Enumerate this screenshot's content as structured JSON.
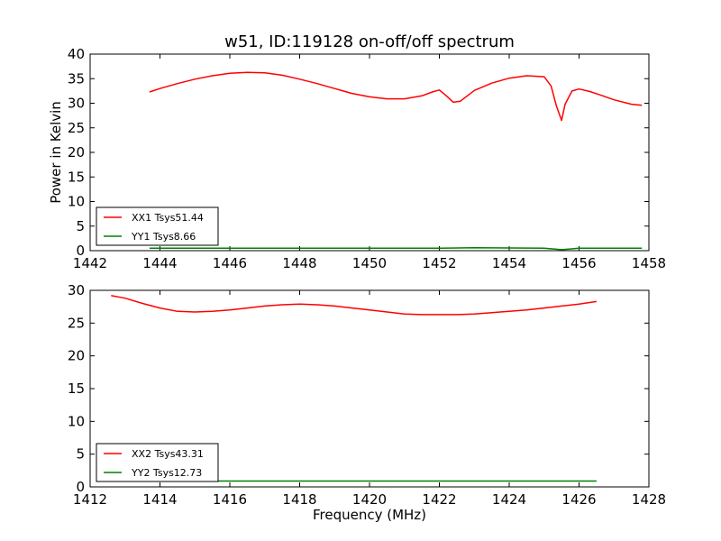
{
  "figure": {
    "title": "w51, ID:119128 on-off/off spectrum",
    "colors": {
      "xx": "#ff0000",
      "yy": "#008000",
      "axes": "#000000",
      "background": "#ffffff"
    }
  },
  "chart_data": [
    {
      "type": "line",
      "title": "w51, ID:119128 on-off/off spectrum",
      "xlabel": "",
      "ylabel": "Power in Kelvin",
      "xlim": [
        1442,
        1458
      ],
      "ylim": [
        0,
        40
      ],
      "xticks": [
        "1442",
        "1444",
        "1446",
        "1448",
        "1450",
        "1452",
        "1454",
        "1456",
        "1458"
      ],
      "yticks": [
        "0",
        "5",
        "10",
        "15",
        "20",
        "25",
        "30",
        "35",
        "40"
      ],
      "legend_position": "lower-left",
      "grid": false,
      "series": [
        {
          "name": "XX1 Tsys51.44",
          "color": "#ff0000",
          "x": [
            1443.7,
            1444.0,
            1444.5,
            1445.0,
            1445.5,
            1446.0,
            1446.5,
            1447.0,
            1447.5,
            1448.0,
            1448.5,
            1449.0,
            1449.5,
            1450.0,
            1450.5,
            1451.0,
            1451.5,
            1451.8,
            1452.0,
            1452.2,
            1452.4,
            1452.6,
            1453.0,
            1453.5,
            1454.0,
            1454.5,
            1455.0,
            1455.2,
            1455.35,
            1455.5,
            1455.6,
            1455.8,
            1456.0,
            1456.3,
            1456.6,
            1457.0,
            1457.5,
            1457.8
          ],
          "y": [
            32.3,
            33.0,
            34.0,
            34.9,
            35.6,
            36.1,
            36.3,
            36.2,
            35.7,
            34.9,
            34.0,
            33.0,
            32.0,
            31.3,
            30.9,
            30.9,
            31.5,
            32.3,
            32.7,
            31.5,
            30.2,
            30.4,
            32.6,
            34.1,
            35.1,
            35.6,
            35.4,
            33.5,
            29.5,
            26.5,
            29.8,
            32.5,
            32.9,
            32.4,
            31.7,
            30.7,
            29.8,
            29.6
          ]
        },
        {
          "name": "YY1 Tsys8.66",
          "color": "#008000",
          "x": [
            1443.7,
            1446.0,
            1448.0,
            1450.0,
            1452.0,
            1453.0,
            1454.0,
            1455.0,
            1455.5,
            1456.0,
            1457.0,
            1457.8
          ],
          "y": [
            0.5,
            0.5,
            0.5,
            0.5,
            0.5,
            0.6,
            0.55,
            0.5,
            0.2,
            0.5,
            0.5,
            0.5
          ]
        }
      ]
    },
    {
      "type": "line",
      "title": "",
      "xlabel": "Frequency (MHz)",
      "ylabel": "",
      "xlim": [
        1412,
        1428
      ],
      "ylim": [
        0,
        30
      ],
      "xticks": [
        "1412",
        "1414",
        "1416",
        "1418",
        "1420",
        "1422",
        "1424",
        "1426",
        "1428"
      ],
      "yticks": [
        "0",
        "5",
        "10",
        "15",
        "20",
        "25",
        "30"
      ],
      "legend_position": "lower-left",
      "grid": false,
      "series": [
        {
          "name": "XX2 Tsys43.31",
          "color": "#ff0000",
          "x": [
            1412.6,
            1413.0,
            1413.5,
            1414.0,
            1414.5,
            1415.0,
            1415.5,
            1416.0,
            1416.5,
            1417.0,
            1417.5,
            1418.0,
            1418.5,
            1419.0,
            1419.5,
            1420.0,
            1420.5,
            1421.0,
            1421.5,
            1422.0,
            1422.5,
            1423.0,
            1423.5,
            1424.0,
            1424.5,
            1425.0,
            1425.5,
            1426.0,
            1426.5
          ],
          "y": [
            29.2,
            28.8,
            28.0,
            27.3,
            26.8,
            26.7,
            26.8,
            27.0,
            27.3,
            27.6,
            27.8,
            27.9,
            27.8,
            27.6,
            27.3,
            27.0,
            26.7,
            26.4,
            26.3,
            26.3,
            26.3,
            26.4,
            26.6,
            26.8,
            27.0,
            27.3,
            27.6,
            27.9,
            28.3
          ]
        },
        {
          "name": "YY2 Tsys12.73",
          "color": "#008000",
          "x": [
            1412.6,
            1414.0,
            1416.0,
            1418.0,
            1420.0,
            1422.0,
            1424.0,
            1426.0,
            1426.5
          ],
          "y": [
            0.9,
            0.9,
            0.9,
            0.9,
            0.9,
            0.9,
            0.9,
            0.9,
            0.9
          ]
        }
      ]
    }
  ]
}
